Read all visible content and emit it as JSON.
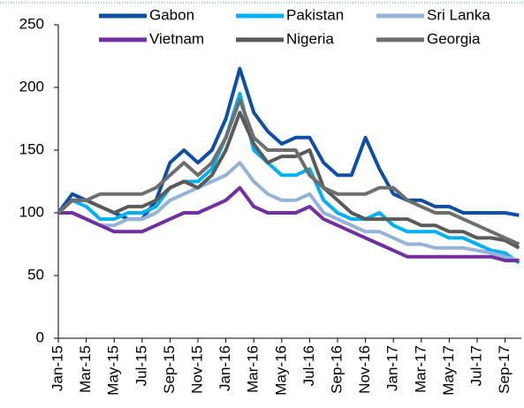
{
  "chart_data": {
    "type": "line",
    "categories": [
      "Jan-15",
      null,
      "Mar-15",
      null,
      "May-15",
      null,
      "Jul-15",
      null,
      "Sep-15",
      null,
      "Nov-15",
      null,
      "Jan-16",
      null,
      "Mar-16",
      null,
      "May-16",
      null,
      "Jul-16",
      null,
      "Sep-16",
      null,
      "Nov-16",
      null,
      "Jan-17",
      null,
      "Mar-17",
      null,
      "May-17",
      null,
      "Jul-17",
      null,
      "Sep-17",
      null
    ],
    "series": [
      {
        "name": "Gabon",
        "color": "#0e4fa3",
        "values": [
          100,
          115,
          110,
          105,
          100,
          95,
          95,
          110,
          140,
          150,
          140,
          150,
          175,
          215,
          180,
          165,
          155,
          160,
          160,
          140,
          130,
          130,
          160,
          135,
          115,
          110,
          110,
          105,
          105,
          100,
          100,
          100,
          100,
          98
        ]
      },
      {
        "name": "Pakistan",
        "color": "#00b0f0",
        "values": [
          100,
          110,
          105,
          95,
          95,
          100,
          100,
          105,
          120,
          125,
          125,
          135,
          160,
          195,
          150,
          140,
          130,
          130,
          135,
          110,
          100,
          95,
          95,
          100,
          90,
          85,
          85,
          85,
          80,
          80,
          75,
          70,
          68,
          60
        ]
      },
      {
        "name": "Sri Lanka",
        "color": "#95b3d7",
        "values": [
          100,
          100,
          95,
          90,
          90,
          95,
          95,
          100,
          110,
          115,
          120,
          125,
          130,
          140,
          125,
          115,
          110,
          110,
          115,
          100,
          95,
          90,
          85,
          85,
          80,
          75,
          75,
          72,
          72,
          72,
          70,
          68,
          65,
          62
        ]
      },
      {
        "name": "Vietnam",
        "color": "#7030a0",
        "values": [
          100,
          100,
          95,
          90,
          85,
          85,
          85,
          90,
          95,
          100,
          100,
          105,
          110,
          120,
          105,
          100,
          100,
          100,
          105,
          95,
          90,
          85,
          80,
          75,
          70,
          65,
          65,
          65,
          65,
          65,
          65,
          65,
          62,
          62
        ]
      },
      {
        "name": "Nigeria",
        "color": "#5a5a5a",
        "values": [
          100,
          110,
          110,
          105,
          100,
          105,
          105,
          110,
          120,
          125,
          120,
          130,
          150,
          180,
          155,
          140,
          145,
          145,
          150,
          120,
          110,
          100,
          95,
          95,
          95,
          95,
          90,
          90,
          85,
          85,
          80,
          80,
          78,
          72
        ]
      },
      {
        "name": "Georgia",
        "color": "#6e6e6e",
        "values": [
          100,
          110,
          110,
          115,
          115,
          115,
          115,
          120,
          130,
          140,
          130,
          140,
          160,
          190,
          160,
          150,
          150,
          150,
          130,
          120,
          115,
          115,
          115,
          120,
          120,
          110,
          105,
          100,
          100,
          95,
          90,
          85,
          80,
          75
        ]
      }
    ],
    "ylim": [
      0,
      250
    ],
    "yticks": [
      0,
      50,
      100,
      150,
      200,
      250
    ]
  }
}
